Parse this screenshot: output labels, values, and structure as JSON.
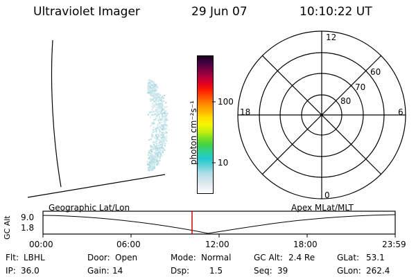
{
  "header": {
    "title": "Ultraviolet Imager",
    "date": "29 Jun 07",
    "time": "10:10:22 UT"
  },
  "colorbar": {
    "unit_label": "photon cm⁻²s⁻¹",
    "ticks": [
      "100",
      "10"
    ],
    "colors": [
      "#ffffff",
      "#e8eef2",
      "#cfe2ea",
      "#a9dde6",
      "#5fd3d8",
      "#22c9d0",
      "#2fd09a",
      "#3fd04a",
      "#7be01f",
      "#c6ee10",
      "#f4f700",
      "#ffe000",
      "#ffb000",
      "#ff8a00",
      "#ff5200",
      "#ff1e00",
      "#e00020",
      "#b00040",
      "#7a0040",
      "#440044",
      "#1a0020"
    ]
  },
  "polar": {
    "mlt_labels": {
      "top": "12",
      "left": "18",
      "right": "6",
      "bottom": "0"
    },
    "lat_labels": [
      "80",
      "70",
      "60"
    ]
  },
  "timeline": {
    "left_label": "Geographic Lat/Lon",
    "right_label": "Apex MLat/MLT",
    "axis_label": "GC Alt",
    "y_max": "9.0",
    "y_min": "1.8",
    "x_ticks": [
      "00:00",
      "06:00",
      "12:00",
      "18:00",
      "23:59"
    ],
    "current_marker_color": "#cc0000"
  },
  "info": {
    "row1": [
      {
        "label": "Flt:",
        "value": "LBHL"
      },
      {
        "label": "Door:",
        "value": "Open"
      },
      {
        "label": "Mode:",
        "value": "Normal"
      },
      {
        "label": "GC Alt:",
        "value": "2.4 Re"
      },
      {
        "label": "GLat:",
        "value": "53.1"
      }
    ],
    "row2": [
      {
        "label": "IP:",
        "value": "36.0"
      },
      {
        "label": "Gain:",
        "value": "14"
      },
      {
        "label": "Dsp:",
        "value": "1.5"
      },
      {
        "label": "Seq:",
        "value": "39"
      },
      {
        "label": "GLon:",
        "value": "262.4"
      }
    ]
  }
}
